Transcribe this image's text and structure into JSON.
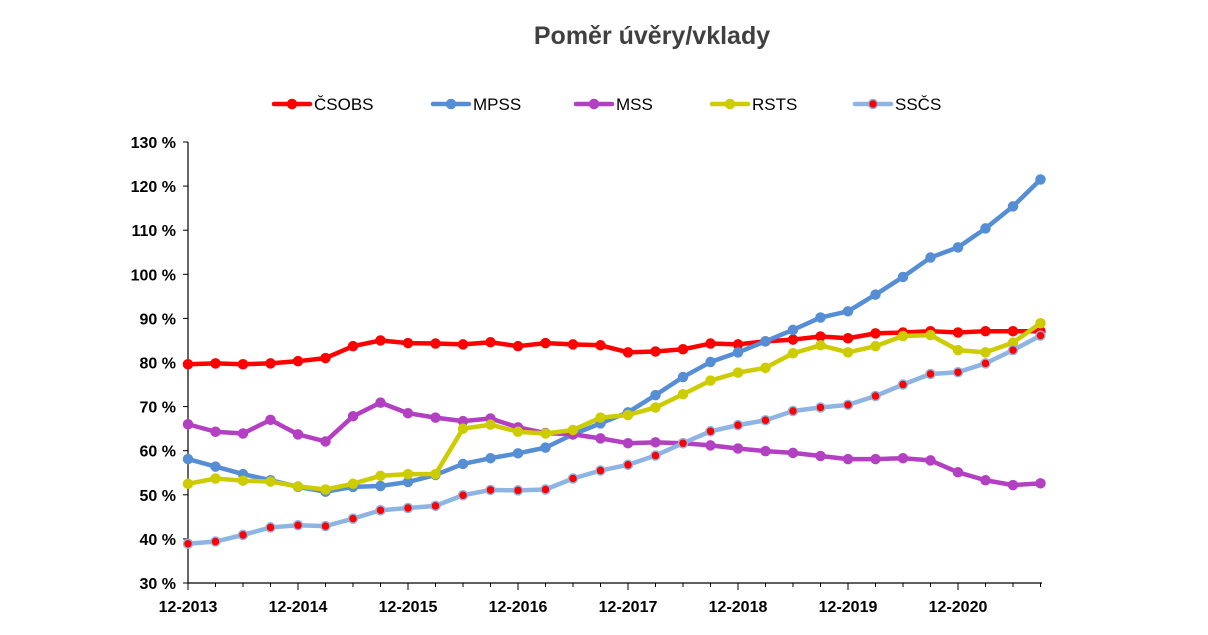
{
  "chart_data": {
    "type": "line",
    "title": "Poměr úvěry/vklady",
    "xlabel": "",
    "ylabel": "",
    "ylim": [
      30,
      130
    ],
    "y_ticks": [
      "30 %",
      "40 %",
      "50 %",
      "60 %",
      "70 %",
      "80 %",
      "90 %",
      "100 %",
      "110 %",
      "120 %",
      "130 %"
    ],
    "x_tick_labels": [
      "12-2013",
      "12-2014",
      "12-2015",
      "12-2016",
      "12-2017",
      "12-2018",
      "12-2019",
      "12-2020"
    ],
    "points_per_year": 4,
    "grid": false,
    "legend_position": "top",
    "series": [
      {
        "name": "ČSOBS",
        "color": "#ff0000",
        "marker_color": "#ff0000",
        "values": [
          79.6,
          79.8,
          79.6,
          79.8,
          80.3,
          81.0,
          83.7,
          85.0,
          84.4,
          84.3,
          84.1,
          84.6,
          83.7,
          84.4,
          84.1,
          83.9,
          82.3,
          82.5,
          83.0,
          84.3,
          84.1,
          84.8,
          85.2,
          85.9,
          85.5,
          86.6,
          86.8,
          87.1,
          86.8,
          87.1,
          87.1,
          87.1
        ]
      },
      {
        "name": "MPSS",
        "color": "#558ed5",
        "marker_color": "#558ed5",
        "values": [
          58.1,
          56.4,
          54.7,
          53.3,
          51.8,
          50.7,
          51.8,
          52.0,
          52.9,
          54.5,
          57.0,
          58.3,
          59.4,
          60.7,
          63.7,
          66.2,
          68.7,
          72.6,
          76.7,
          80.1,
          82.3,
          84.8,
          87.4,
          90.2,
          91.6,
          95.4,
          99.4,
          103.8,
          106.1,
          110.4,
          115.4,
          121.5
        ]
      },
      {
        "name": "MSS",
        "color": "#b340c2",
        "marker_color": "#b340c2",
        "values": [
          66.0,
          64.3,
          63.9,
          67.0,
          63.7,
          62.1,
          67.8,
          70.9,
          68.5,
          67.5,
          66.7,
          67.3,
          65.3,
          64.0,
          63.7,
          62.8,
          61.7,
          61.9,
          61.7,
          61.2,
          60.5,
          59.9,
          59.5,
          58.8,
          58.1,
          58.1,
          58.3,
          57.8,
          55.1,
          53.3,
          52.2,
          52.6
        ]
      },
      {
        "name": "RSTS",
        "color": "#cccc00",
        "marker_color": "#cccc00",
        "values": [
          52.5,
          53.7,
          53.2,
          53.0,
          51.9,
          51.2,
          52.5,
          54.3,
          54.7,
          54.7,
          65.0,
          65.9,
          64.3,
          63.9,
          64.7,
          67.5,
          68.1,
          69.8,
          72.8,
          75.9,
          77.7,
          78.8,
          82.1,
          83.9,
          82.3,
          83.7,
          86.0,
          86.2,
          82.8,
          82.3,
          84.5,
          88.9
        ]
      },
      {
        "name": "SSČS",
        "color": "#8db4e2",
        "marker_color": "#ff0000",
        "values": [
          38.9,
          39.4,
          40.9,
          42.6,
          43.1,
          42.9,
          44.6,
          46.5,
          47.0,
          47.5,
          49.9,
          51.1,
          51.0,
          51.2,
          53.7,
          55.5,
          56.8,
          58.9,
          61.7,
          64.4,
          65.8,
          66.9,
          69.0,
          69.8,
          70.4,
          72.4,
          75.0,
          77.4,
          77.8,
          79.8,
          82.8,
          86.1
        ]
      }
    ]
  }
}
